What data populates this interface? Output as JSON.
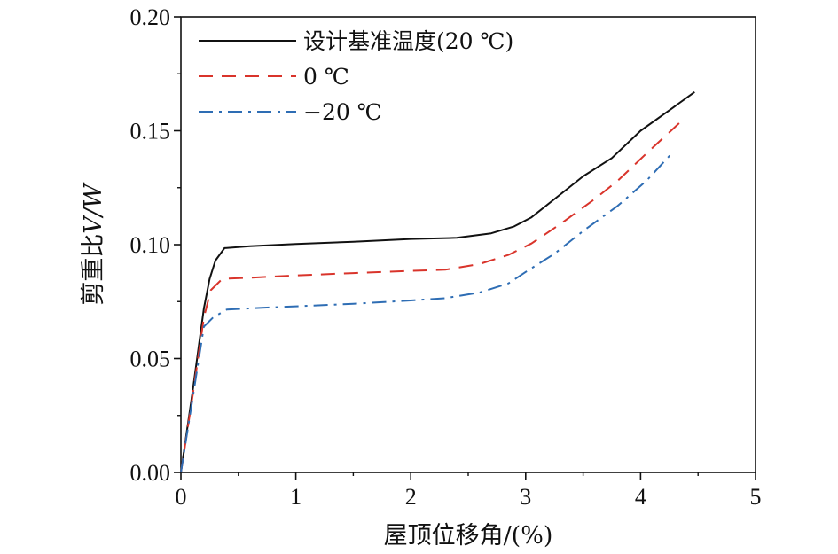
{
  "chart_data": {
    "type": "line",
    "xlabel": "屋顶位移角/(%)",
    "ylabel_prefix": "剪重比",
    "ylabel_var": "V/W",
    "xlim": [
      0,
      5
    ],
    "ylim": [
      0,
      0.2
    ],
    "x_ticks": [
      "0",
      "1",
      "2",
      "3",
      "4",
      "5"
    ],
    "y_ticks": [
      "0.00",
      "0.05",
      "0.10",
      "0.15",
      "0.20"
    ],
    "grid": false,
    "legend_position": "top-left",
    "series": [
      {
        "name": "设计基准温度(20 ℃)",
        "color": "#111111",
        "dash": "solid",
        "points": [
          [
            0,
            0
          ],
          [
            0.1,
            0.035
          ],
          [
            0.2,
            0.072
          ],
          [
            0.25,
            0.085
          ],
          [
            0.3,
            0.093
          ],
          [
            0.38,
            0.0985
          ],
          [
            0.6,
            0.0993
          ],
          [
            1.0,
            0.1003
          ],
          [
            1.5,
            0.1013
          ],
          [
            2.0,
            0.1025
          ],
          [
            2.4,
            0.103
          ],
          [
            2.7,
            0.105
          ],
          [
            2.9,
            0.108
          ],
          [
            3.05,
            0.112
          ],
          [
            3.3,
            0.122
          ],
          [
            3.5,
            0.13
          ],
          [
            3.75,
            0.138
          ],
          [
            4.0,
            0.15
          ],
          [
            4.25,
            0.159
          ],
          [
            4.47,
            0.167
          ]
        ]
      },
      {
        "name": "0 ℃",
        "color": "#d9342b",
        "dash": "dashed",
        "points": [
          [
            0,
            0
          ],
          [
            0.1,
            0.033
          ],
          [
            0.2,
            0.068
          ],
          [
            0.26,
            0.08
          ],
          [
            0.36,
            0.085
          ],
          [
            0.6,
            0.0855
          ],
          [
            1.0,
            0.0865
          ],
          [
            1.5,
            0.0875
          ],
          [
            2.0,
            0.0885
          ],
          [
            2.3,
            0.089
          ],
          [
            2.6,
            0.0915
          ],
          [
            2.85,
            0.0955
          ],
          [
            3.05,
            0.1005
          ],
          [
            3.3,
            0.109
          ],
          [
            3.6,
            0.12
          ],
          [
            3.8,
            0.128
          ],
          [
            4.05,
            0.14
          ],
          [
            4.35,
            0.154
          ]
        ]
      },
      {
        "name": "−20 ℃",
        "color": "#2e6db4",
        "dash": "dashdot",
        "points": [
          [
            0,
            0
          ],
          [
            0.1,
            0.032
          ],
          [
            0.2,
            0.064
          ],
          [
            0.28,
            0.068
          ],
          [
            0.4,
            0.0715
          ],
          [
            0.8,
            0.0725
          ],
          [
            1.5,
            0.074
          ],
          [
            2.0,
            0.0755
          ],
          [
            2.3,
            0.0765
          ],
          [
            2.6,
            0.079
          ],
          [
            2.85,
            0.083
          ],
          [
            3.0,
            0.088
          ],
          [
            3.25,
            0.096
          ],
          [
            3.5,
            0.106
          ],
          [
            3.8,
            0.117
          ],
          [
            4.05,
            0.128
          ],
          [
            4.27,
            0.14
          ]
        ]
      }
    ]
  }
}
